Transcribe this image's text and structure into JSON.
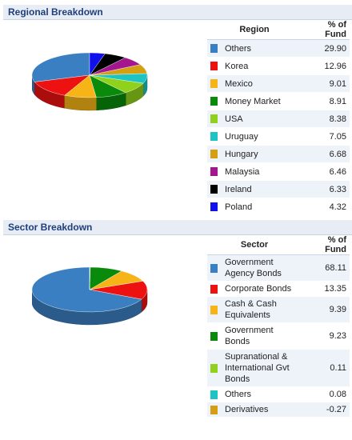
{
  "regional": {
    "title": "Regional Breakdown",
    "col_name": "Region",
    "col_pct": "% of Fund"
  },
  "sector": {
    "title": "Sector Breakdown",
    "col_name": "Sector",
    "col_pct": "% of Fund"
  },
  "chart_data": [
    {
      "type": "pie",
      "title": "Regional Breakdown",
      "categories": [
        "Others",
        "Korea",
        "Mexico",
        "Money Market",
        "USA",
        "Uruguay",
        "Hungary",
        "Malaysia",
        "Ireland",
        "Poland"
      ],
      "labels": [
        "29.90",
        "12.96",
        "9.01",
        "8.91",
        "8.38",
        "7.05",
        "6.68",
        "6.46",
        "6.33",
        "4.32"
      ],
      "values": [
        29.9,
        12.96,
        9.01,
        8.91,
        8.38,
        7.05,
        6.68,
        6.46,
        6.33,
        4.32
      ],
      "colors": [
        "#3a7fc1",
        "#ee1111",
        "#f7b416",
        "#0a8a0a",
        "#8fd11b",
        "#1cc4c4",
        "#d4a011",
        "#a3168e",
        "#000000",
        "#1111ee"
      ]
    },
    {
      "type": "pie",
      "title": "Sector Breakdown",
      "categories": [
        "Government Agency Bonds",
        "Corporate Bonds",
        "Cash & Cash Equivalents",
        "Government Bonds",
        "Supranational & International Gvt Bonds",
        "Others",
        "Derivatives"
      ],
      "labels": [
        "68.11",
        "13.35",
        "9.39",
        "9.23",
        "0.11",
        "0.08",
        "-0.27"
      ],
      "values": [
        68.11,
        13.35,
        9.39,
        9.23,
        0.11,
        0.08,
        -0.27
      ],
      "colors": [
        "#3a7fc1",
        "#ee1111",
        "#f7b416",
        "#0a8a0a",
        "#8fd11b",
        "#1cc4c4",
        "#d4a011"
      ]
    }
  ]
}
